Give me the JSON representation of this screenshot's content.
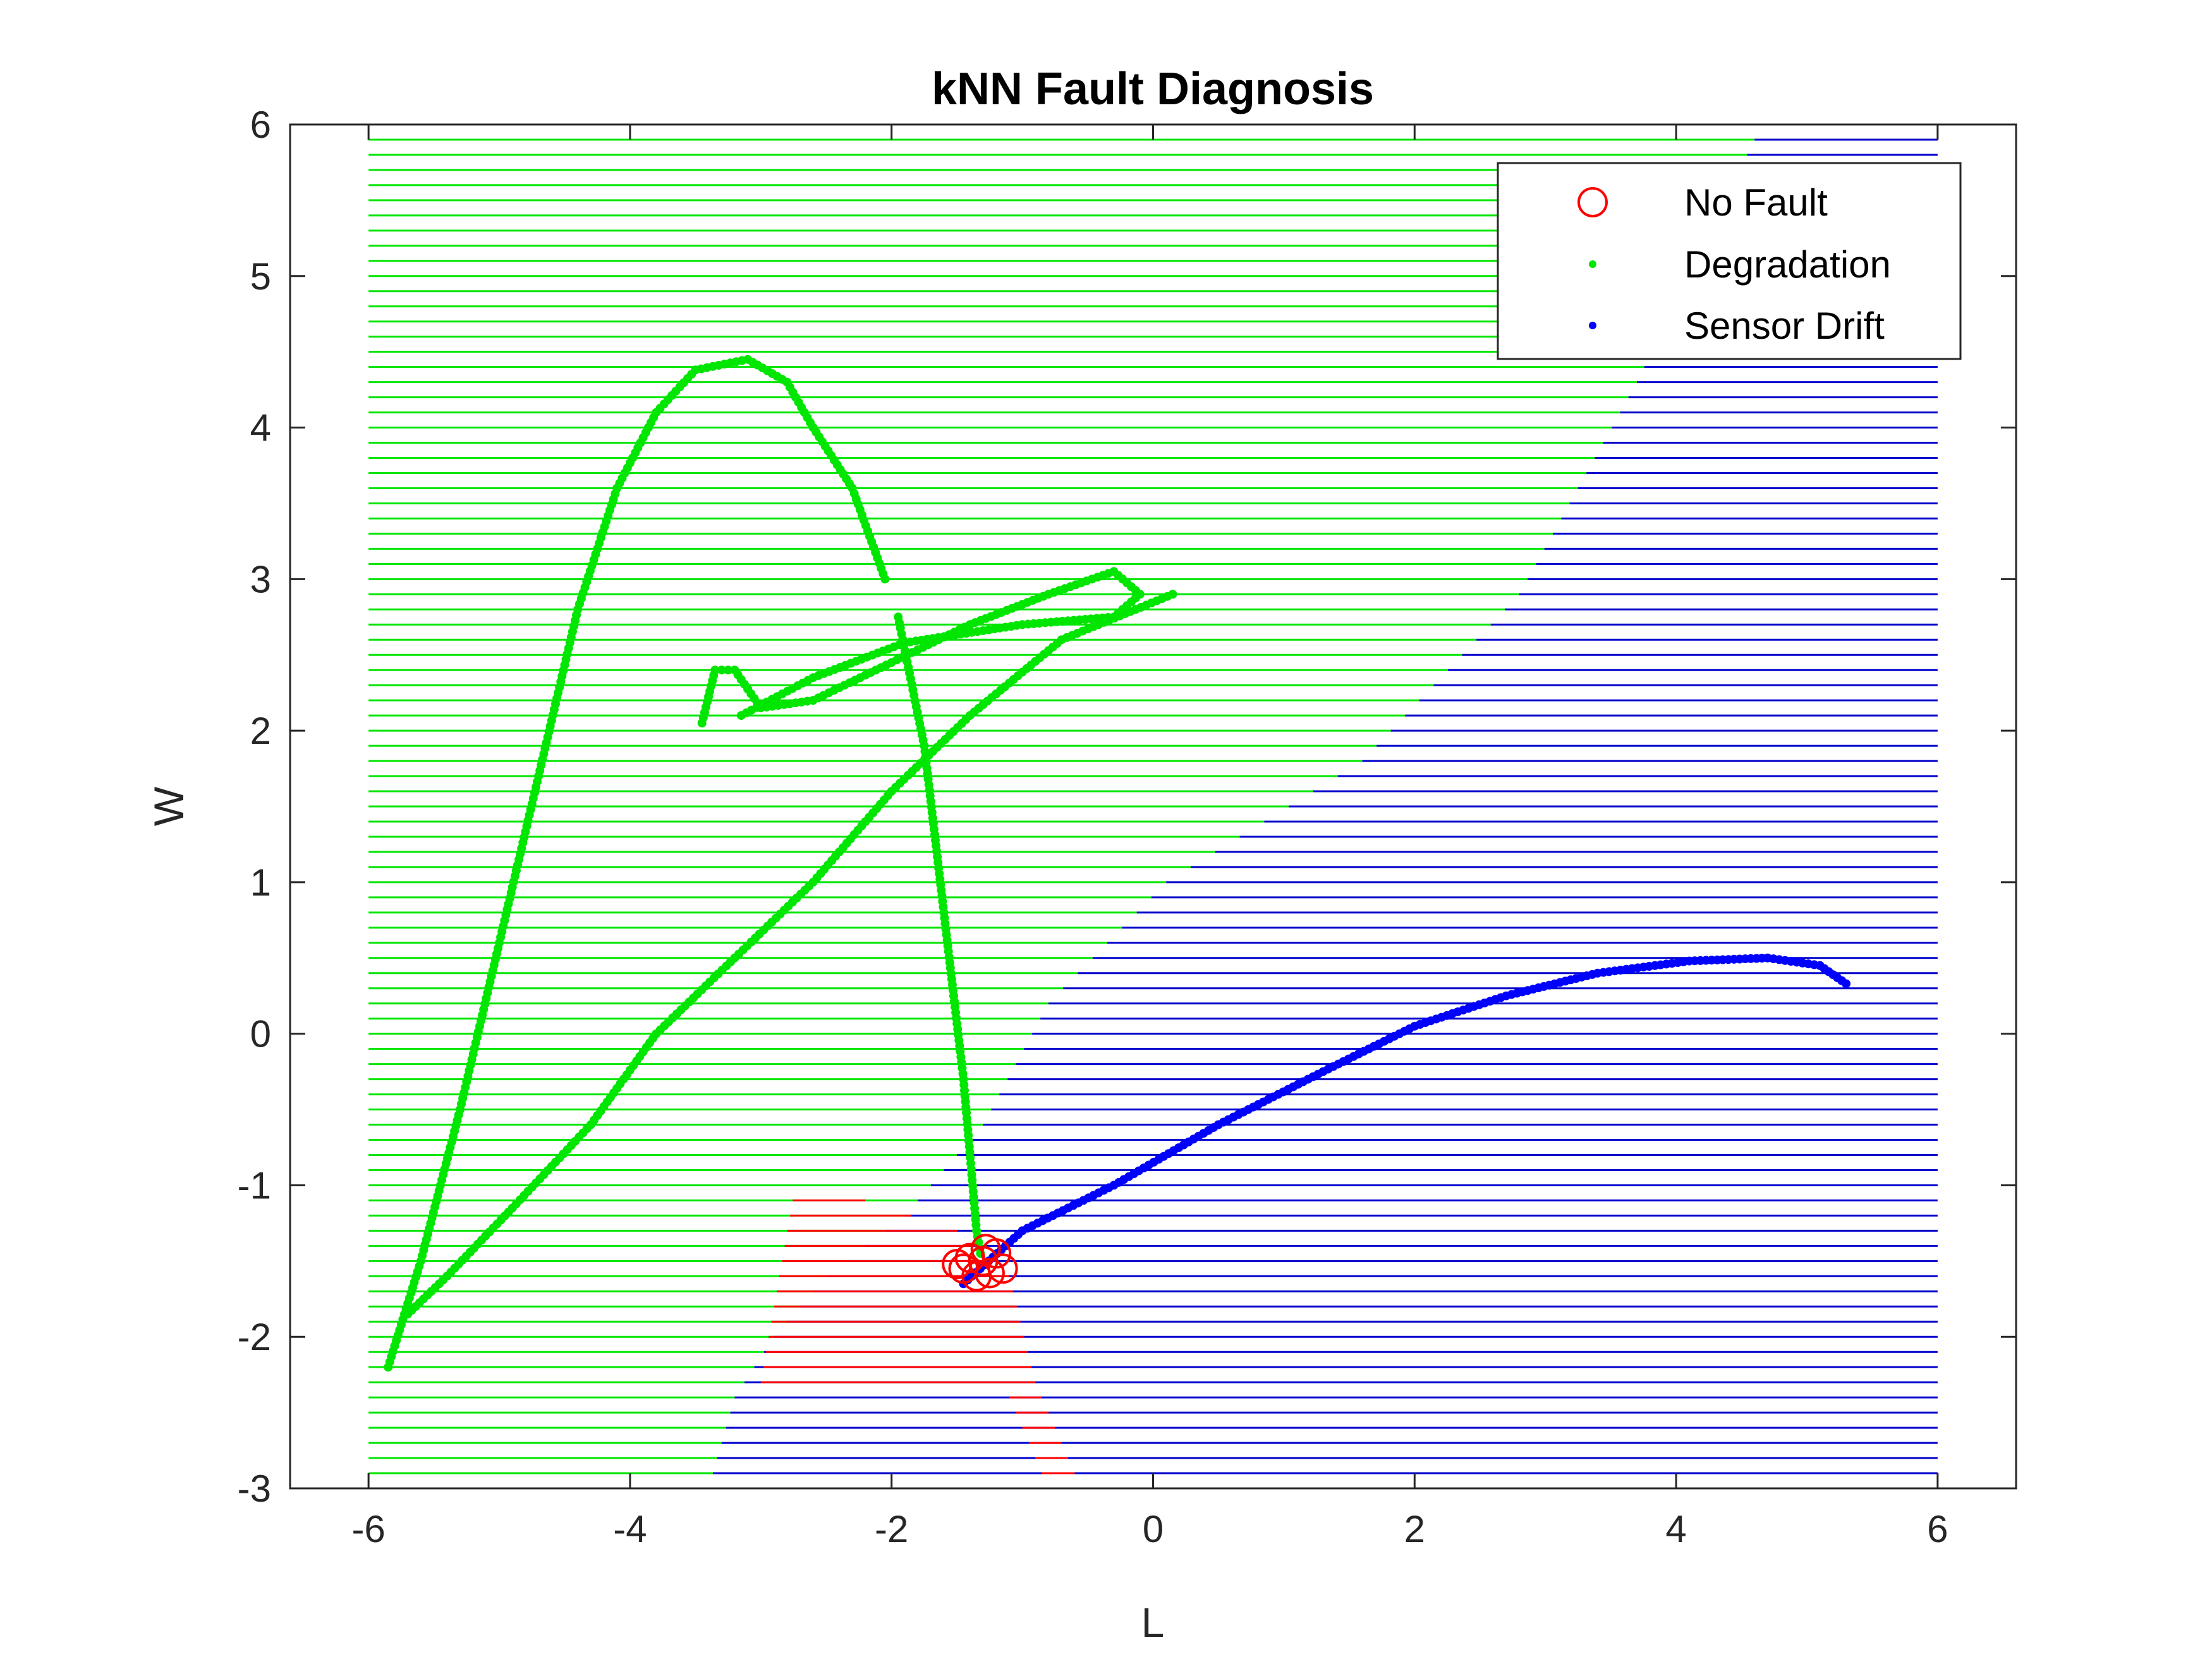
{
  "chart_data": {
    "type": "scatter",
    "title": "kNN Fault Diagnosis",
    "xlabel": "L",
    "ylabel": "W",
    "xlim": [
      -6.6,
      6.6
    ],
    "ylim": [
      -3,
      6
    ],
    "xticks": [
      "-6",
      "-4",
      "-2",
      "0",
      "2",
      "4",
      "6"
    ],
    "yticks": [
      "-3",
      "-2",
      "-1",
      "0",
      "1",
      "2",
      "3",
      "4",
      "5",
      "6"
    ],
    "legend_position": "top-right",
    "grid": false,
    "background_mesh": {
      "description_units": "data",
      "x_range": [
        -6,
        6
      ],
      "y_range": [
        -3,
        6
      ],
      "row_step": 0.1,
      "regions": [
        {
          "class": "Degradation",
          "color": "#00e600"
        },
        {
          "class": "Sensor Drift",
          "color": "#0000cc"
        },
        {
          "class": "No Fault",
          "color": "#ff0000"
        }
      ],
      "degradation_right_boundary": [
        [
          -3.4,
          -3.0
        ],
        [
          -3.2,
          -2.4
        ],
        [
          -2.9,
          -2.0
        ],
        [
          -2.5,
          -1.6
        ],
        [
          -1.9,
          -1.2
        ],
        [
          -1.3,
          -0.6
        ],
        [
          -0.8,
          0.2
        ],
        [
          0.1,
          1.0
        ],
        [
          1.6,
          1.8
        ],
        [
          2.8,
          2.9
        ],
        [
          3.7,
          4.3
        ],
        [
          4.6,
          5.9
        ],
        [
          4.6,
          6.0
        ]
      ],
      "no_fault_region": [
        [
          -2.75,
          -1.07
        ],
        [
          -2.2,
          -1.1
        ],
        [
          -1.5,
          -1.3
        ],
        [
          -1.1,
          -1.6
        ],
        [
          -0.9,
          -2.3
        ],
        [
          -0.55,
          -3.0
        ],
        [
          -0.8,
          -3.0
        ],
        [
          -1.2,
          -2.2
        ],
        [
          -1.6,
          -1.9
        ],
        [
          -2.3,
          -2.2
        ],
        [
          -3.0,
          -2.3
        ]
      ]
    },
    "series": [
      {
        "name": "No Fault",
        "color": "#ff0000",
        "marker": "circle-open",
        "points": [
          [
            -1.45,
            -1.55
          ],
          [
            -1.3,
            -1.5
          ],
          [
            -1.2,
            -1.45
          ],
          [
            -1.25,
            -1.58
          ],
          [
            -1.35,
            -1.6
          ],
          [
            -1.5,
            -1.52
          ],
          [
            -1.4,
            -1.48
          ],
          [
            -1.15,
            -1.55
          ],
          [
            -1.28,
            -1.42
          ]
        ]
      },
      {
        "name": "Degradation",
        "color": "#00e600",
        "marker": "dot",
        "curves": [
          [
            [
              -5.85,
              -2.2
            ],
            [
              -5.6,
              -1.5
            ],
            [
              -5.3,
              -0.5
            ],
            [
              -5.0,
              0.6
            ],
            [
              -4.7,
              1.7
            ],
            [
              -4.4,
              2.8
            ],
            [
              -4.1,
              3.6
            ],
            [
              -3.8,
              4.1
            ],
            [
              -3.5,
              4.38
            ],
            [
              -3.1,
              4.45
            ],
            [
              -2.8,
              4.3
            ],
            [
              -2.6,
              4.0
            ],
            [
              -2.3,
              3.6
            ],
            [
              -2.05,
              3.0
            ]
          ],
          [
            [
              -1.95,
              2.75
            ],
            [
              -1.75,
              1.9
            ],
            [
              -1.6,
              0.8
            ],
            [
              -1.45,
              -0.3
            ],
            [
              -1.35,
              -1.3
            ],
            [
              -1.32,
              -1.45
            ]
          ],
          [
            [
              -3.45,
              2.05
            ],
            [
              -3.35,
              2.4
            ],
            [
              -3.2,
              2.4
            ],
            [
              -3.0,
              2.15
            ],
            [
              -2.6,
              2.2
            ],
            [
              -2.0,
              2.45
            ],
            [
              -1.4,
              2.7
            ],
            [
              -0.8,
              2.9
            ],
            [
              -0.3,
              3.05
            ],
            [
              -0.1,
              2.9
            ],
            [
              -0.3,
              2.75
            ],
            [
              -1.0,
              2.7
            ],
            [
              -1.9,
              2.58
            ],
            [
              -2.6,
              2.35
            ],
            [
              -3.15,
              2.1
            ]
          ],
          [
            [
              0.15,
              2.9
            ],
            [
              -0.7,
              2.6
            ],
            [
              -1.4,
              2.1
            ],
            [
              -2.0,
              1.6
            ],
            [
              -2.6,
              1.0
            ],
            [
              -3.2,
              0.5
            ],
            [
              -3.8,
              0.0
            ],
            [
              -4.3,
              -0.6
            ],
            [
              -4.9,
              -1.15
            ],
            [
              -5.4,
              -1.6
            ],
            [
              -5.7,
              -1.85
            ]
          ]
        ]
      },
      {
        "name": "Sensor Drift",
        "color": "#0000ff",
        "marker": "dot",
        "curves": [
          [
            [
              -1.45,
              -1.65
            ],
            [
              -1.0,
              -1.3
            ],
            [
              -0.3,
              -1.0
            ],
            [
              0.5,
              -0.6
            ],
            [
              1.3,
              -0.25
            ],
            [
              2.0,
              0.05
            ],
            [
              2.7,
              0.25
            ],
            [
              3.4,
              0.4
            ],
            [
              4.1,
              0.48
            ],
            [
              4.7,
              0.5
            ],
            [
              5.1,
              0.45
            ],
            [
              5.3,
              0.33
            ]
          ]
        ]
      }
    ]
  }
}
